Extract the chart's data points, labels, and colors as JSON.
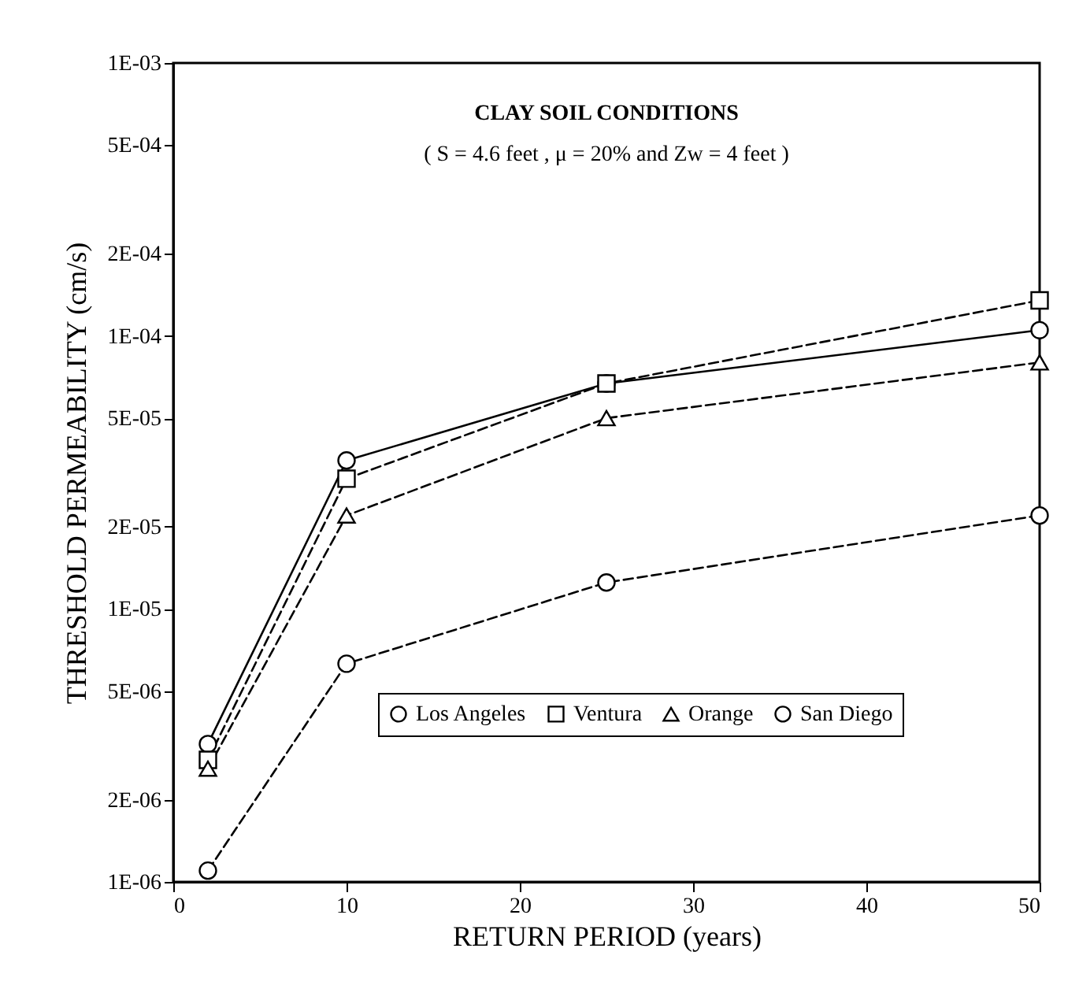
{
  "chart_data": {
    "type": "line",
    "title": "CLAY SOIL CONDITIONS",
    "subtitle": "( S = 4.6 feet , μ = 20%  and  Zw = 4 feet )",
    "xlabel": "RETURN PERIOD (years)",
    "ylabel": "THRESHOLD PERMEABILITY (cm/s)",
    "x": [
      2,
      10,
      25,
      50
    ],
    "series": [
      {
        "name": "Los Angeles",
        "color": "#000000",
        "marker": "circle",
        "line_style": "solid",
        "values": [
          3.2e-06,
          3.5e-05,
          6.7e-05,
          0.000105
        ]
      },
      {
        "name": "Ventura",
        "color": "#000000",
        "marker": "square",
        "line_style": "dashed",
        "values": [
          2.8e-06,
          3e-05,
          6.7e-05,
          0.000135
        ]
      },
      {
        "name": "Orange",
        "color": "#000000",
        "marker": "triangle",
        "line_style": "dashed",
        "values": [
          2.6e-06,
          2.2e-05,
          5e-05,
          8e-05
        ]
      },
      {
        "name": "San Diego",
        "color": "#000000",
        "marker": "circle",
        "line_style": "dashed",
        "values": [
          1.1e-06,
          6.3e-06,
          1.25e-05,
          2.2e-05
        ]
      }
    ],
    "log": "y",
    "xlim": [
      0,
      50
    ],
    "xticks": [
      0,
      10,
      20,
      30,
      40,
      50
    ],
    "ylim": [
      1e-06,
      0.001
    ],
    "yticks": [
      {
        "value": 1e-06,
        "label": "1E-06"
      },
      {
        "value": 2e-06,
        "label": "2E-06"
      },
      {
        "value": 5e-06,
        "label": "5E-06"
      },
      {
        "value": 1e-05,
        "label": "1E-05"
      },
      {
        "value": 2e-05,
        "label": "2E-05"
      },
      {
        "value": 5e-05,
        "label": "5E-05"
      },
      {
        "value": 0.0001,
        "label": "1E-04"
      },
      {
        "value": 0.0002,
        "label": "2E-04"
      },
      {
        "value": 0.0005,
        "label": "5E-04"
      },
      {
        "value": 0.001,
        "label": "1E-03"
      }
    ],
    "grid": false,
    "legend": "bottom"
  }
}
